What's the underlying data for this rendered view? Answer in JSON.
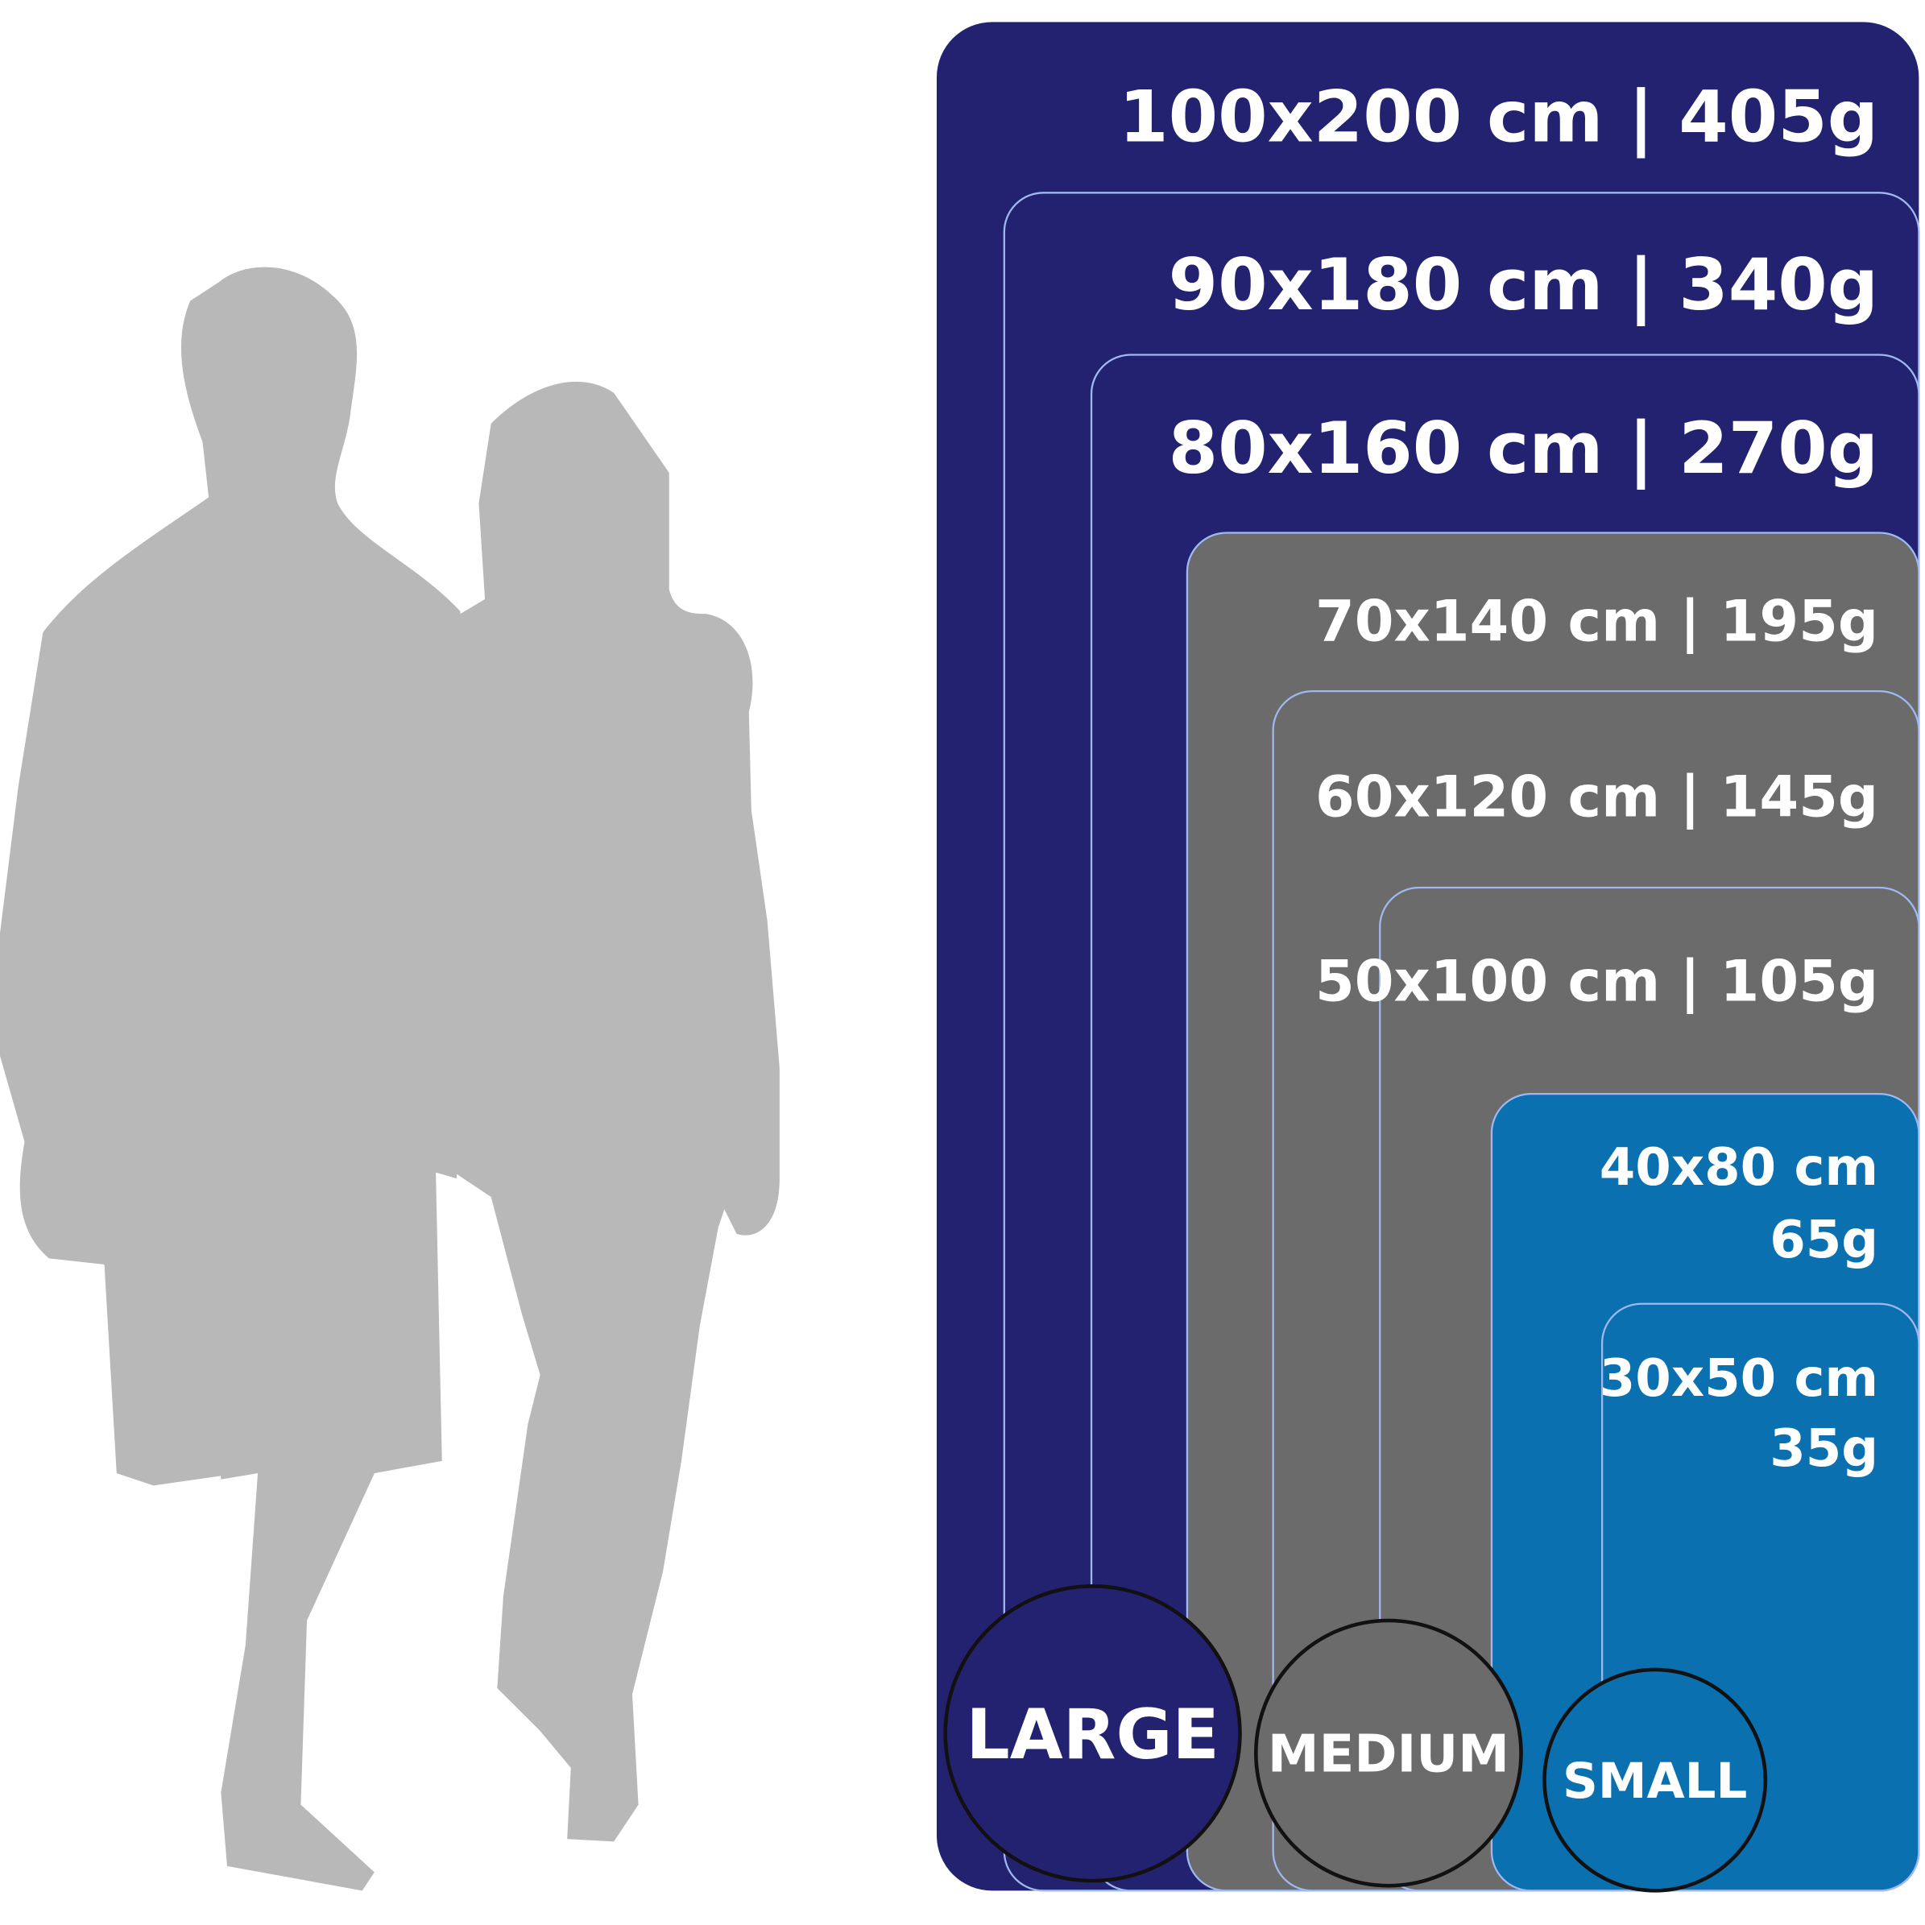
{
  "sizes": [
    {
      "lines": [
        "100x200 cm | 405g"
      ]
    },
    {
      "lines": [
        "90x180 cm | 340g"
      ]
    },
    {
      "lines": [
        "80x160 cm | 270g"
      ]
    },
    {
      "lines": [
        "70x140 cm | 195g"
      ]
    },
    {
      "lines": [
        "60x120 cm | 145g"
      ]
    },
    {
      "lines": [
        "50x100 cm | 105g"
      ]
    },
    {
      "lines": [
        "40x80 cm",
        "65g"
      ]
    },
    {
      "lines": [
        "30x50 cm",
        "35g"
      ]
    }
  ],
  "badges": [
    "LARGE",
    "MEDIUM",
    "SMALL"
  ]
}
